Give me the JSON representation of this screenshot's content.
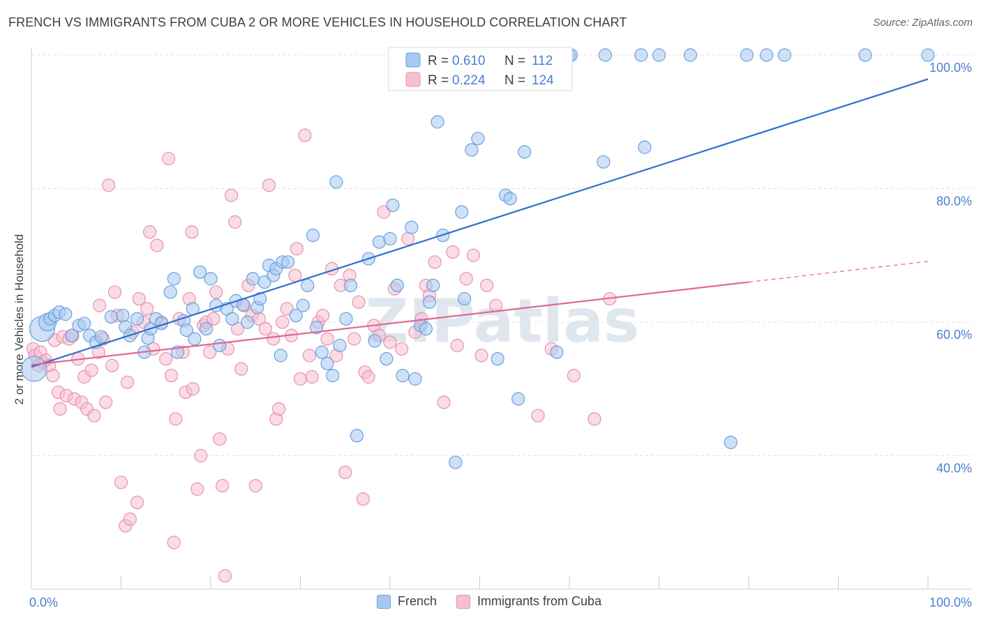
{
  "title": "FRENCH VS IMMIGRANTS FROM CUBA 2 OR MORE VEHICLES IN HOUSEHOLD CORRELATION CHART",
  "source": "Source: ZipAtlas.com",
  "watermark": "ZIPatlas",
  "colors": {
    "blue_fill": "#a8c8f0",
    "blue_stroke": "#6a9fe0",
    "blue_line": "#2e6fce",
    "pink_fill": "#f6c0d0",
    "pink_stroke": "#e891ad",
    "pink_line": "#e06692",
    "tick_label": "#4a7fd0",
    "grid": "#dde3ea"
  },
  "legend": {
    "r_label": "R =",
    "n_label": "N =",
    "french": {
      "r": "0.610",
      "n": "112"
    },
    "cuba": {
      "r": "0.224",
      "n": "124"
    }
  },
  "bottom_legend": {
    "french": "French",
    "cuba": "Immigrants from Cuba"
  },
  "chart_data": {
    "type": "scatter",
    "title": "FRENCH VS IMMIGRANTS FROM CUBA 2 OR MORE VEHICLES IN HOUSEHOLD CORRELATION CHART",
    "xlabel": "",
    "ylabel": "2 or more Vehicles in Household",
    "x_tick_labels": [
      "0.0%",
      "100.0%"
    ],
    "y_tick_labels": [
      "40.0%",
      "60.0%",
      "80.0%",
      "100.0%"
    ],
    "y_ticks": [
      40,
      60,
      80,
      100
    ],
    "xlim": [
      0,
      100
    ],
    "ylim": [
      20,
      100
    ],
    "grid": true,
    "legend_position": "top-center",
    "series": [
      {
        "name": "French",
        "r": 0.61,
        "n": 112,
        "trend": {
          "x0": 0,
          "y0": 53.3,
          "x1": 100,
          "y1": 96.4
        },
        "points": [
          [
            0.3,
            53
          ],
          [
            1.2,
            59
          ],
          [
            1.8,
            60
          ],
          [
            2.1,
            60.5
          ],
          [
            2.6,
            61
          ],
          [
            3.1,
            61.5
          ],
          [
            3.8,
            61.2
          ],
          [
            4.5,
            58
          ],
          [
            5.3,
            59.5
          ],
          [
            5.9,
            59.8
          ],
          [
            6.5,
            58
          ],
          [
            7.2,
            57
          ],
          [
            7.8,
            57.8
          ],
          [
            8.9,
            60.8
          ],
          [
            10.2,
            61
          ],
          [
            10.5,
            59.3
          ],
          [
            11.0,
            58
          ],
          [
            11.8,
            60.5
          ],
          [
            12.6,
            55.5
          ],
          [
            13.0,
            57.6
          ],
          [
            13.3,
            59
          ],
          [
            13.9,
            60.5
          ],
          [
            14.5,
            59.8
          ],
          [
            15.5,
            64.5
          ],
          [
            15.9,
            66.5
          ],
          [
            16.3,
            55.5
          ],
          [
            17.0,
            60.2
          ],
          [
            17.3,
            58.8
          ],
          [
            18.0,
            62
          ],
          [
            18.2,
            57.5
          ],
          [
            18.8,
            67.5
          ],
          [
            19.5,
            59
          ],
          [
            20.0,
            66.5
          ],
          [
            20.6,
            62.5
          ],
          [
            21.0,
            56.5
          ],
          [
            21.8,
            62
          ],
          [
            22.4,
            60.5
          ],
          [
            22.8,
            63.2
          ],
          [
            23.6,
            62.6
          ],
          [
            24.1,
            60
          ],
          [
            24.7,
            66.5
          ],
          [
            25.2,
            62.2
          ],
          [
            25.5,
            63.5
          ],
          [
            26.0,
            66
          ],
          [
            26.5,
            68.5
          ],
          [
            27.0,
            67
          ],
          [
            27.3,
            68
          ],
          [
            28.0,
            69
          ],
          [
            27.8,
            55
          ],
          [
            28.6,
            69
          ],
          [
            29.5,
            61
          ],
          [
            30.3,
            62.5
          ],
          [
            30.8,
            65.5
          ],
          [
            31.4,
            73
          ],
          [
            31.8,
            59.2
          ],
          [
            32.4,
            55.5
          ],
          [
            33.0,
            53.8
          ],
          [
            33.6,
            52
          ],
          [
            34.0,
            81
          ],
          [
            34.4,
            56.5
          ],
          [
            35.1,
            60.5
          ],
          [
            35.6,
            65.5
          ],
          [
            36.3,
            43
          ],
          [
            37.6,
            69.5
          ],
          [
            38.3,
            57.2
          ],
          [
            38.8,
            72
          ],
          [
            39.6,
            54.5
          ],
          [
            40.0,
            72.5
          ],
          [
            40.3,
            77.5
          ],
          [
            40.8,
            65.5
          ],
          [
            41.4,
            52
          ],
          [
            42.4,
            74.2
          ],
          [
            42.8,
            51.5
          ],
          [
            43.4,
            59.5
          ],
          [
            44.0,
            59
          ],
          [
            44.4,
            63
          ],
          [
            44.8,
            65.5
          ],
          [
            45.3,
            90
          ],
          [
            45.9,
            73
          ],
          [
            47.3,
            39
          ],
          [
            48.0,
            76.5
          ],
          [
            48.3,
            63.5
          ],
          [
            49.1,
            85.8
          ],
          [
            49.8,
            87.5
          ],
          [
            49.5,
            100
          ],
          [
            50.5,
            100
          ],
          [
            51.5,
            100
          ],
          [
            52.0,
            54.5
          ],
          [
            52.2,
            100
          ],
          [
            52.9,
            79
          ],
          [
            53.4,
            78.5
          ],
          [
            54.3,
            48.5
          ],
          [
            55.0,
            85.5
          ],
          [
            56.0,
            100
          ],
          [
            56.2,
            100
          ],
          [
            57.1,
            100
          ],
          [
            58.0,
            100
          ],
          [
            58.6,
            55.5
          ],
          [
            60.0,
            100
          ],
          [
            60.2,
            100
          ],
          [
            63.8,
            84
          ],
          [
            64.0,
            100
          ],
          [
            68.0,
            100
          ],
          [
            68.4,
            86.2
          ],
          [
            70.0,
            100
          ],
          [
            73.5,
            100
          ],
          [
            78.0,
            42
          ],
          [
            79.8,
            100
          ],
          [
            82.0,
            100
          ],
          [
            84.0,
            100
          ],
          [
            93.0,
            100
          ],
          [
            100,
            100
          ]
        ],
        "sizes": {
          "0.3,53": 2,
          "1.2,59": 2,
          "1.8,60": 1.4
        }
      },
      {
        "name": "Immigrants from Cuba",
        "r": 0.224,
        "n": 124,
        "trend": {
          "x0": 0,
          "y0": 53.6,
          "x1": 80,
          "y1": 66.0,
          "dash_to": {
            "x": 100,
            "y": 69.1
          }
        },
        "points": [
          [
            0.2,
            56
          ],
          [
            0.4,
            55
          ],
          [
            0.8,
            53.5
          ],
          [
            1.0,
            55.5
          ],
          [
            1.3,
            54
          ],
          [
            1.6,
            54.3
          ],
          [
            2.0,
            53.5
          ],
          [
            2.4,
            52
          ],
          [
            2.6,
            57.3
          ],
          [
            3.0,
            49.5
          ],
          [
            3.2,
            47
          ],
          [
            3.5,
            57.8
          ],
          [
            3.9,
            49
          ],
          [
            4.2,
            57.5
          ],
          [
            4.6,
            58
          ],
          [
            4.8,
            48.5
          ],
          [
            5.2,
            54.5
          ],
          [
            5.6,
            48
          ],
          [
            5.9,
            51.8
          ],
          [
            6.2,
            47
          ],
          [
            6.7,
            52.8
          ],
          [
            7.0,
            46
          ],
          [
            7.5,
            55.5
          ],
          [
            7.6,
            62.5
          ],
          [
            8.0,
            57.5
          ],
          [
            8.3,
            48
          ],
          [
            8.6,
            80.5
          ],
          [
            9.0,
            53.5
          ],
          [
            9.3,
            64.5
          ],
          [
            9.6,
            61
          ],
          [
            10.0,
            36
          ],
          [
            10.5,
            29.5
          ],
          [
            10.7,
            51
          ],
          [
            11.0,
            30.5
          ],
          [
            11.3,
            58.5
          ],
          [
            11.8,
            33
          ],
          [
            12.0,
            63.5
          ],
          [
            12.5,
            60
          ],
          [
            12.9,
            62
          ],
          [
            13.2,
            73.5
          ],
          [
            13.6,
            56
          ],
          [
            14.0,
            71.5
          ],
          [
            14.5,
            60
          ],
          [
            15.0,
            54.5
          ],
          [
            15.3,
            84.5
          ],
          [
            15.6,
            52
          ],
          [
            15.9,
            27
          ],
          [
            16.1,
            45.5
          ],
          [
            16.5,
            60.5
          ],
          [
            16.9,
            55.5
          ],
          [
            17.2,
            49.5
          ],
          [
            17.6,
            63.5
          ],
          [
            17.9,
            73.5
          ],
          [
            18.0,
            50
          ],
          [
            18.5,
            35
          ],
          [
            18.9,
            40
          ],
          [
            19.2,
            59.5
          ],
          [
            19.5,
            60
          ],
          [
            19.9,
            55.5
          ],
          [
            20.3,
            60.5
          ],
          [
            20.6,
            64.5
          ],
          [
            21.0,
            42.5
          ],
          [
            21.3,
            35.5
          ],
          [
            21.6,
            22
          ],
          [
            21.9,
            56
          ],
          [
            22.3,
            79
          ],
          [
            22.7,
            75
          ],
          [
            23.0,
            59
          ],
          [
            23.4,
            53
          ],
          [
            23.7,
            62.5
          ],
          [
            24.2,
            65.5
          ],
          [
            24.6,
            61
          ],
          [
            25.0,
            35.5
          ],
          [
            25.4,
            60.5
          ],
          [
            26.1,
            59
          ],
          [
            26.5,
            80.5
          ],
          [
            27.0,
            57.5
          ],
          [
            27.3,
            45.5
          ],
          [
            27.6,
            47
          ],
          [
            28.0,
            60
          ],
          [
            28.5,
            62
          ],
          [
            29.0,
            58
          ],
          [
            29.4,
            67
          ],
          [
            29.6,
            71
          ],
          [
            30.0,
            51.5
          ],
          [
            30.5,
            88
          ],
          [
            31.0,
            55
          ],
          [
            31.3,
            51.8
          ],
          [
            32.0,
            60
          ],
          [
            32.5,
            61
          ],
          [
            33.0,
            57.5
          ],
          [
            33.5,
            68
          ],
          [
            34.0,
            55
          ],
          [
            34.5,
            65.5
          ],
          [
            35.0,
            37.5
          ],
          [
            35.5,
            67
          ],
          [
            36.0,
            57.5
          ],
          [
            36.5,
            63
          ],
          [
            37.0,
            33.5
          ],
          [
            37.2,
            52.5
          ],
          [
            37.6,
            51.8
          ],
          [
            38.2,
            59.5
          ],
          [
            38.8,
            58
          ],
          [
            39.3,
            76.5
          ],
          [
            40.0,
            57
          ],
          [
            40.5,
            65
          ],
          [
            41.3,
            56
          ],
          [
            42.0,
            72.5
          ],
          [
            42.8,
            58.5
          ],
          [
            43.5,
            60.5
          ],
          [
            44.0,
            65.5
          ],
          [
            44.4,
            64
          ],
          [
            45.0,
            69
          ],
          [
            46.0,
            48
          ],
          [
            47.0,
            70.5
          ],
          [
            47.5,
            56.5
          ],
          [
            48.5,
            66.5
          ],
          [
            49.3,
            70
          ],
          [
            50.2,
            55
          ],
          [
            50.8,
            65.5
          ],
          [
            51.8,
            62.5
          ],
          [
            56.5,
            46
          ],
          [
            58.0,
            56
          ],
          [
            60.5,
            52
          ],
          [
            62.8,
            45.5
          ],
          [
            64.5,
            63.5
          ]
        ]
      }
    ]
  }
}
